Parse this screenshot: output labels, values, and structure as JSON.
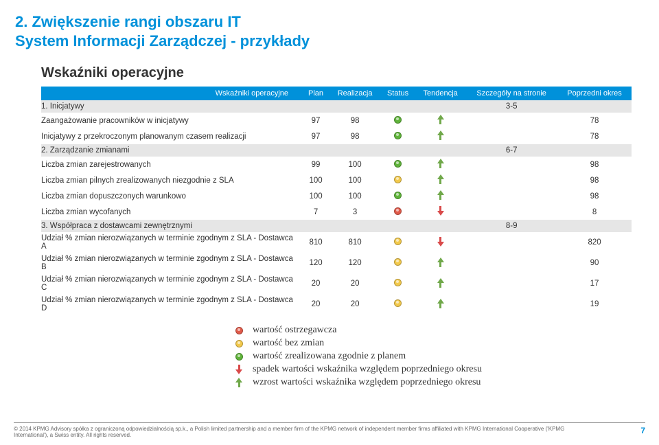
{
  "colors": {
    "brand_blue": "#0091da",
    "section_gray": "#e6e6e6",
    "status_green": "#5fb33a",
    "status_yellow": "#f2c94c",
    "status_red": "#e05a4a",
    "arrow_up": "#70a84a",
    "arrow_down": "#d94a4a"
  },
  "title": {
    "line1": "2. Zwiększenie rangi obszaru IT",
    "line2": "System Informacji Zarządczej - przykłady"
  },
  "subtitle": "Wskaźniki operacyjne",
  "table": {
    "headers": [
      "Wskaźniki operacyjne",
      "Plan",
      "Realizacja",
      "Status",
      "Tendencja",
      "Szczegóły na stronie",
      "Poprzedni okres"
    ],
    "rows": [
      {
        "type": "section",
        "label": "1. Inicjatywy",
        "detail": "3-5"
      },
      {
        "type": "data",
        "label": "Zaangażowanie pracowników    w inicjatywy",
        "plan": "97",
        "real": "98",
        "status": "green",
        "trend": "up",
        "detail": "",
        "prev": "78"
      },
      {
        "type": "data",
        "label": "Inicjatywy z przekroczonym planowanym czasem realizacji",
        "plan": "97",
        "real": "98",
        "status": "green",
        "trend": "up",
        "detail": "",
        "prev": "78"
      },
      {
        "type": "section",
        "label": "2. Zarządzanie zmianami",
        "detail": "6-7"
      },
      {
        "type": "data",
        "label": "Liczba zmian zarejestrowanych",
        "plan": "99",
        "real": "100",
        "status": "green",
        "trend": "up",
        "detail": "",
        "prev": "98"
      },
      {
        "type": "data",
        "label": "Liczba zmian pilnych zrealizowanych niezgodnie z SLA",
        "plan": "100",
        "real": "100",
        "status": "yellow",
        "trend": "up",
        "detail": "",
        "prev": "98"
      },
      {
        "type": "data",
        "label": "Liczba zmian dopuszczonych warunkowo",
        "plan": "100",
        "real": "100",
        "status": "green",
        "trend": "up",
        "detail": "",
        "prev": "98"
      },
      {
        "type": "data",
        "label": "Liczba zmian wycofanych",
        "plan": "7",
        "real": "3",
        "status": "red",
        "trend": "down",
        "detail": "",
        "prev": "8"
      },
      {
        "type": "section",
        "label": "3. Współpraca z dostawcami zewnętrznymi",
        "detail": "8-9"
      },
      {
        "type": "data",
        "label": "Udział % zmian nierozwiązanych w terminie zgodnym z SLA - Dostawca A",
        "plan": "810",
        "real": "810",
        "status": "yellow",
        "trend": "down",
        "detail": "",
        "prev": "820"
      },
      {
        "type": "data",
        "label": "Udział % zmian nierozwiązanych w terminie zgodnym z SLA - Dostawca B",
        "plan": "120",
        "real": "120",
        "status": "yellow",
        "trend": "up",
        "detail": "",
        "prev": "90"
      },
      {
        "type": "data",
        "label": "Udział % zmian nierozwiązanych w terminie zgodnym z SLA - Dostawca C",
        "plan": "20",
        "real": "20",
        "status": "yellow",
        "trend": "up",
        "detail": "",
        "prev": "17"
      },
      {
        "type": "data",
        "label": "Udział % zmian nierozwiązanych w terminie zgodnym z SLA - Dostawca D",
        "plan": "20",
        "real": "20",
        "status": "yellow",
        "trend": "up",
        "detail": "",
        "prev": "19"
      }
    ]
  },
  "legend": {
    "items": [
      {
        "icon": "dot",
        "color": "#e05a4a",
        "text": "wartość ostrzegawcza"
      },
      {
        "icon": "dot",
        "color": "#f2c94c",
        "text": "wartość bez zmian"
      },
      {
        "icon": "dot",
        "color": "#5fb33a",
        "text": "wartość zrealizowana zgodnie z planem"
      },
      {
        "icon": "arrow-down",
        "text": "spadek wartości wskaźnika względem poprzedniego okresu"
      },
      {
        "icon": "arrow-up",
        "text": "wzrost wartości wskaźnika względem poprzedniego okresu"
      }
    ]
  },
  "footer": {
    "copyright": "© 2014 KPMG Advisory spółka z ograniczoną odpowiedzialnością sp.k., a Polish limited partnership and a member firm of the KPMG network of independent member firms affiliated with KPMG International Cooperative ('KPMG International'), a Swiss entity. All rights reserved.",
    "page": "7"
  }
}
